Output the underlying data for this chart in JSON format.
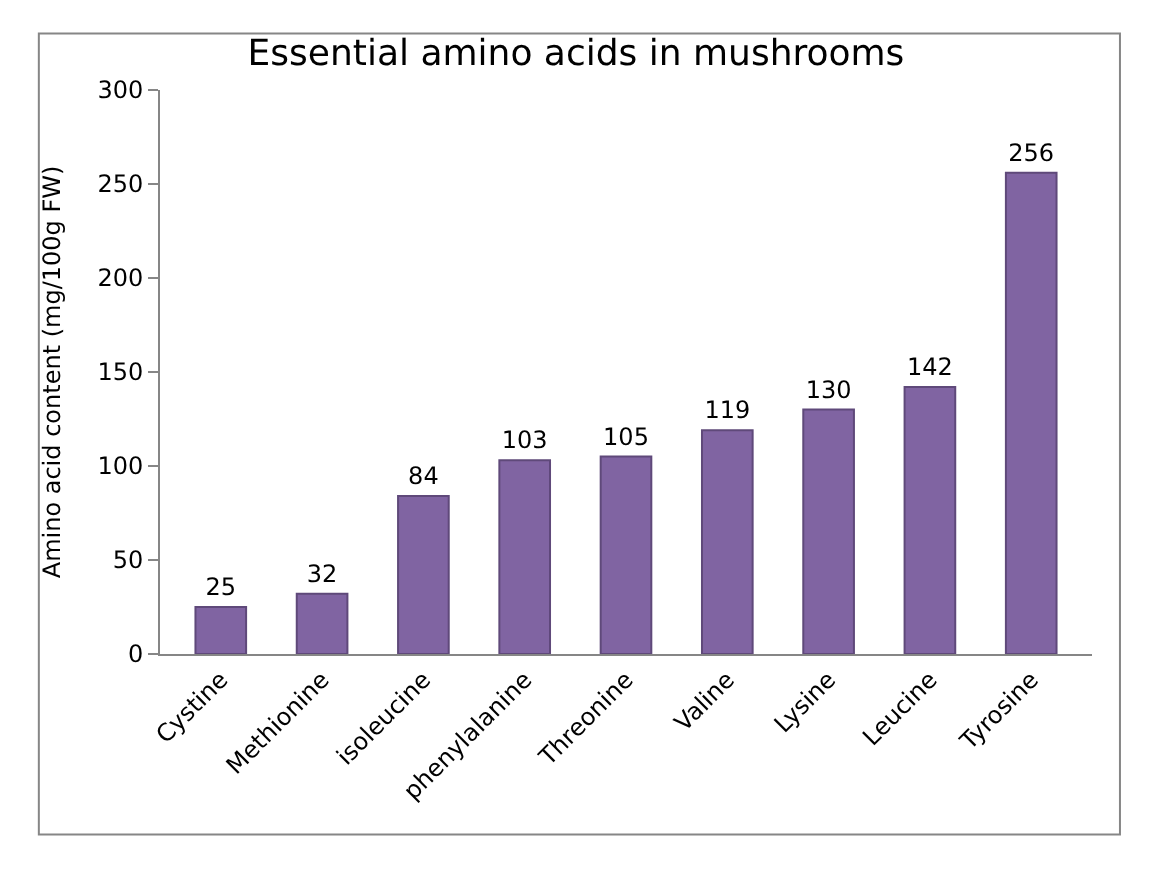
{
  "chart_data": {
    "type": "bar",
    "title": "Essential amino acids in mushrooms",
    "ylabel": "Amino acid content (mg/100g FW)",
    "categories": [
      "Cystine",
      "Methionine",
      "isoleucine",
      "phenylalanine",
      "Threonine",
      "Valine",
      "Lysine",
      "Leucine",
      "Tyrosine"
    ],
    "values": [
      25,
      32,
      84,
      103,
      105,
      119,
      130,
      142,
      256
    ],
    "color": "#8064a2",
    "ylim": [
      0,
      300
    ],
    "yticks": [
      0,
      50,
      100,
      150,
      200,
      250,
      300
    ],
    "data_labels": true,
    "grid": false
  }
}
